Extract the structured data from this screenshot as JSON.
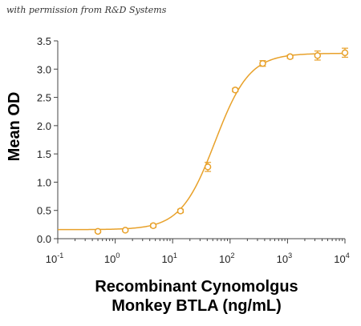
{
  "watermark": "with permission from R&D Systems",
  "chart_data": {
    "type": "scatter",
    "ylabel": "Mean OD",
    "xlabel_line1": "Recombinant Cynomolgus",
    "xlabel_line2": "Monkey BTLA (ng/mL)",
    "x_scale": "log",
    "xlim": [
      0.1,
      10000
    ],
    "ylim": [
      0,
      3.5
    ],
    "x_ticks": [
      {
        "base": "10",
        "exp": "-1",
        "value": 0.1
      },
      {
        "base": "10",
        "exp": "0",
        "value": 1
      },
      {
        "base": "10",
        "exp": "1",
        "value": 10
      },
      {
        "base": "10",
        "exp": "2",
        "value": 100
      },
      {
        "base": "10",
        "exp": "3",
        "value": 1000
      },
      {
        "base": "10",
        "exp": "4",
        "value": 10000
      }
    ],
    "y_ticks": [
      "0.0",
      "0.5",
      "1.0",
      "1.5",
      "2.0",
      "2.5",
      "3.0",
      "3.5"
    ],
    "color": "#e8a12a",
    "points": [
      {
        "x": 0.5,
        "y": 0.13,
        "err": 0.02
      },
      {
        "x": 1.5,
        "y": 0.15,
        "err": 0.02
      },
      {
        "x": 4.6,
        "y": 0.23,
        "err": 0.03
      },
      {
        "x": 13.7,
        "y": 0.49,
        "err": 0.03
      },
      {
        "x": 41,
        "y": 1.27,
        "err": 0.08
      },
      {
        "x": 123,
        "y": 2.63,
        "err": 0.03
      },
      {
        "x": 370,
        "y": 3.1,
        "err": 0.05
      },
      {
        "x": 1110,
        "y": 3.22,
        "err": 0.03
      },
      {
        "x": 3330,
        "y": 3.24,
        "err": 0.08
      },
      {
        "x": 10000,
        "y": 3.29,
        "err": 0.08
      }
    ]
  }
}
